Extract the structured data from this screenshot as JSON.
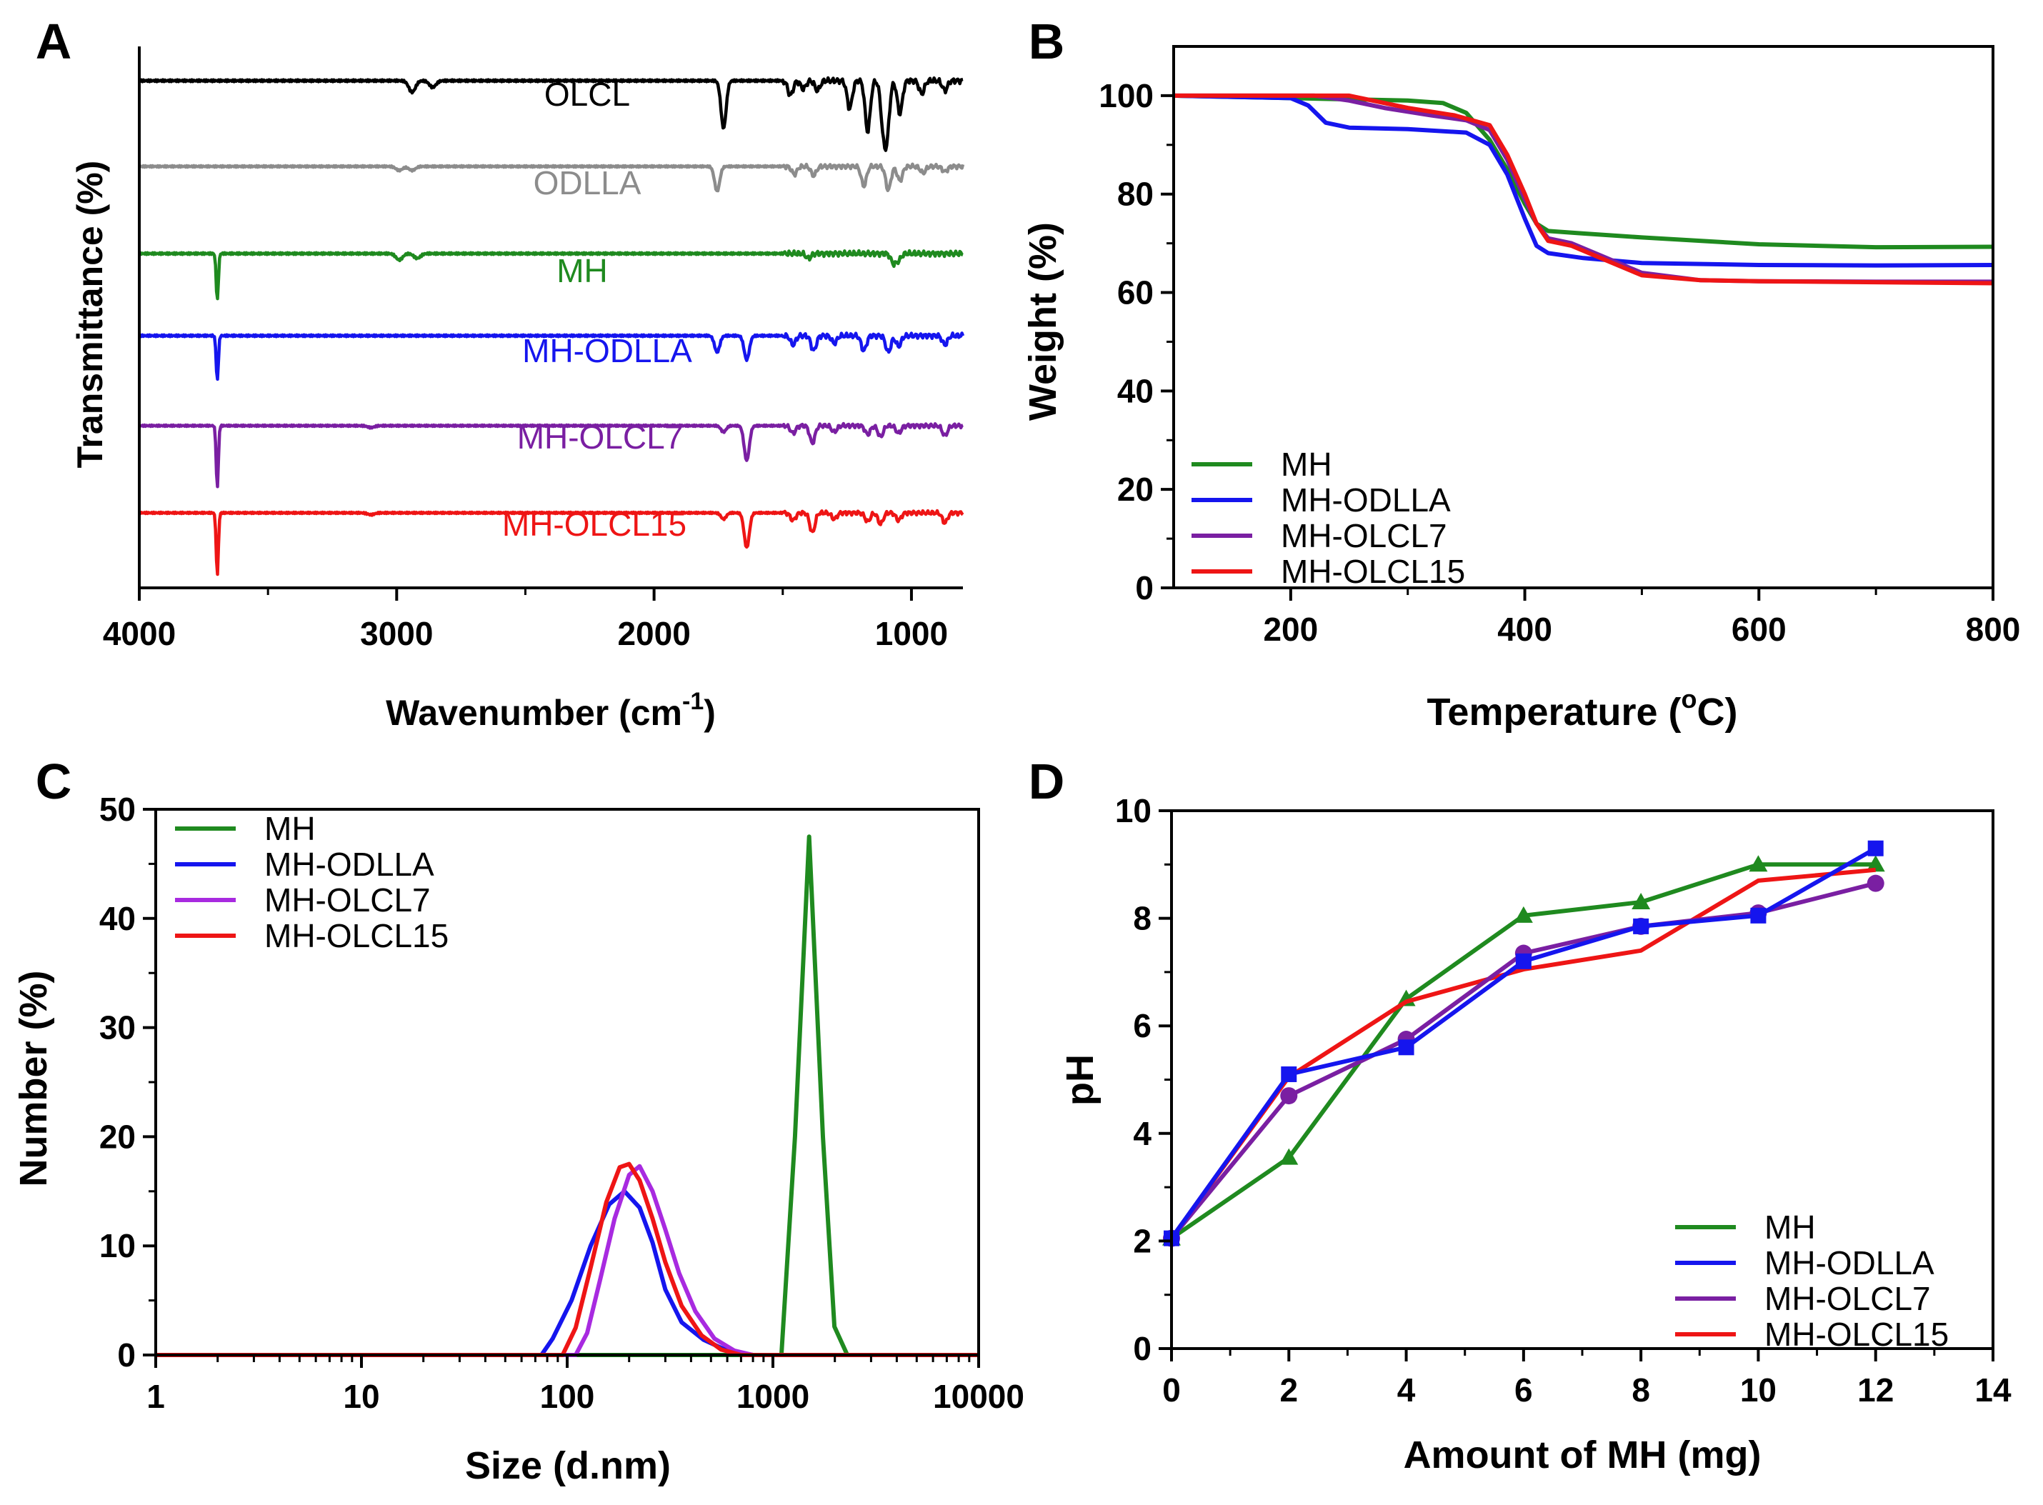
{
  "colors": {
    "black": "#000000",
    "gray": "#8c8c8c",
    "green": "#1f8a1f",
    "blue": "#1515ee",
    "purple": "#7a1fa2",
    "violet": "#a82ae0",
    "red": "#ee1515"
  },
  "chart_data": [
    {
      "panel": "A",
      "type": "line",
      "title": "",
      "xlabel_main": "Wavenumber (cm",
      "xlabel_sup": "-1",
      "xlabel_end": ")",
      "ylabel": "Transmittance (%)",
      "xlim": [
        4000,
        800
      ],
      "xticks": [
        4000,
        3000,
        2000,
        1000
      ],
      "xtick_labels": [
        "4000",
        "3000",
        "2000",
        "1000"
      ],
      "series": [
        {
          "name": "OLCL",
          "color": "#000000",
          "offset": 0,
          "peaks": [
            [
              2940,
              14
            ],
            [
              2860,
              8
            ],
            [
              1730,
              58
            ],
            [
              1470,
              18
            ],
            [
              1420,
              10
            ],
            [
              1365,
              12
            ],
            [
              1240,
              34
            ],
            [
              1170,
              62
            ],
            [
              1110,
              50
            ],
            [
              1095,
              60
            ],
            [
              1045,
              40
            ],
            [
              960,
              16
            ],
            [
              870,
              12
            ]
          ]
        },
        {
          "name": "ODLLA",
          "color": "#8c8c8c",
          "offset": 1,
          "peaks": [
            [
              2990,
              6
            ],
            [
              2940,
              6
            ],
            [
              1755,
              38
            ],
            [
              1455,
              12
            ],
            [
              1380,
              14
            ],
            [
              1185,
              30
            ],
            [
              1090,
              36
            ],
            [
              1045,
              22
            ],
            [
              955,
              10
            ],
            [
              870,
              8
            ]
          ]
        },
        {
          "name": "MH",
          "color": "#1f8a1f",
          "offset": 2,
          "peaks": [
            [
              3697,
              60
            ],
            [
              2990,
              8
            ],
            [
              2920,
              6
            ],
            [
              1400,
              6
            ],
            [
              1070,
              12
            ],
            [
              1050,
              8
            ]
          ]
        },
        {
          "name": "MH-ODLLA",
          "color": "#1515ee",
          "offset": 3,
          "peaks": [
            [
              3697,
              60
            ],
            [
              1755,
              22
            ],
            [
              1640,
              32
            ],
            [
              1460,
              12
            ],
            [
              1380,
              20
            ],
            [
              1300,
              10
            ],
            [
              1185,
              20
            ],
            [
              1090,
              22
            ],
            [
              1050,
              14
            ],
            [
              870,
              12
            ]
          ]
        },
        {
          "name": "MH-OLCL7",
          "color": "#7a1fa2",
          "offset": 4,
          "peaks": [
            [
              3697,
              100
            ],
            [
              3100,
              3
            ],
            [
              1730,
              10
            ],
            [
              1640,
              56
            ],
            [
              1460,
              12
            ],
            [
              1385,
              28
            ],
            [
              1300,
              10
            ],
            [
              1170,
              14
            ],
            [
              1120,
              18
            ],
            [
              1050,
              12
            ],
            [
              870,
              16
            ]
          ]
        },
        {
          "name": "MH-OLCL15",
          "color": "#ee1515",
          "offset": 5,
          "peaks": [
            [
              3697,
              100
            ],
            [
              3100,
              3
            ],
            [
              1730,
              10
            ],
            [
              1640,
              56
            ],
            [
              1460,
              12
            ],
            [
              1385,
              32
            ],
            [
              1300,
              10
            ],
            [
              1170,
              14
            ],
            [
              1120,
              18
            ],
            [
              1050,
              12
            ],
            [
              870,
              16
            ]
          ]
        }
      ]
    },
    {
      "panel": "B",
      "type": "line",
      "title": "",
      "xlabel_main": "Temperature (",
      "xlabel_sup": "o",
      "xlabel_end": "C)",
      "ylabel": "Weight (%)",
      "xlim": [
        100,
        800
      ],
      "ylim": [
        0,
        110
      ],
      "xticks": [
        200,
        400,
        600,
        800
      ],
      "xtick_labels": [
        "200",
        "400",
        "600",
        "800"
      ],
      "yticks": [
        0,
        20,
        40,
        60,
        80,
        100
      ],
      "ytick_labels": [
        "0",
        "20",
        "40",
        "60",
        "80",
        "100"
      ],
      "legend_position": "bottom-left",
      "series": [
        {
          "name": "MH",
          "color": "#1f8a1f",
          "points": [
            [
              100,
              100
            ],
            [
              200,
              99.5
            ],
            [
              300,
              99
            ],
            [
              330,
              98.5
            ],
            [
              350,
              96.5
            ],
            [
              370,
              91
            ],
            [
              385,
              85
            ],
            [
              400,
              78
            ],
            [
              410,
              74
            ],
            [
              420,
              72.5
            ],
            [
              450,
              72
            ],
            [
              500,
              71.2
            ],
            [
              600,
              69.8
            ],
            [
              700,
              69.2
            ],
            [
              800,
              69.3
            ]
          ]
        },
        {
          "name": "MH-ODLLA",
          "color": "#1515ee",
          "points": [
            [
              100,
              100
            ],
            [
              200,
              99.5
            ],
            [
              215,
              98
            ],
            [
              230,
              94.5
            ],
            [
              250,
              93.5
            ],
            [
              300,
              93.2
            ],
            [
              350,
              92.5
            ],
            [
              370,
              90
            ],
            [
              385,
              84
            ],
            [
              400,
              75
            ],
            [
              410,
              69.5
            ],
            [
              420,
              68
            ],
            [
              450,
              67
            ],
            [
              500,
              66
            ],
            [
              600,
              65.6
            ],
            [
              700,
              65.5
            ],
            [
              800,
              65.6
            ]
          ]
        },
        {
          "name": "MH-OLCL7",
          "color": "#7a1fa2",
          "points": [
            [
              100,
              100
            ],
            [
              220,
              100
            ],
            [
              250,
              99
            ],
            [
              280,
              97.5
            ],
            [
              320,
              96
            ],
            [
              350,
              95
            ],
            [
              370,
              93
            ],
            [
              385,
              87
            ],
            [
              400,
              79
            ],
            [
              410,
              74
            ],
            [
              420,
              71
            ],
            [
              440,
              70
            ],
            [
              470,
              67
            ],
            [
              500,
              64
            ],
            [
              550,
              62.5
            ],
            [
              600,
              62.3
            ],
            [
              700,
              62.2
            ],
            [
              800,
              62.2
            ]
          ]
        },
        {
          "name": "MH-OLCL15",
          "color": "#ee1515",
          "points": [
            [
              100,
              100
            ],
            [
              250,
              100
            ],
            [
              270,
              99
            ],
            [
              300,
              97.5
            ],
            [
              340,
              96
            ],
            [
              370,
              94
            ],
            [
              385,
              88
            ],
            [
              400,
              80
            ],
            [
              410,
              74
            ],
            [
              420,
              70.5
            ],
            [
              440,
              69.5
            ],
            [
              470,
              66.5
            ],
            [
              500,
              63.5
            ],
            [
              550,
              62.5
            ],
            [
              600,
              62.3
            ],
            [
              700,
              62.1
            ],
            [
              800,
              61.9
            ]
          ]
        }
      ]
    },
    {
      "panel": "C",
      "type": "line",
      "title": "",
      "xlabel": "Size (d.nm)",
      "ylabel": "Number (%)",
      "xscale": "log",
      "xlim": [
        1,
        10000
      ],
      "ylim": [
        0,
        50
      ],
      "xticks": [
        1,
        10,
        100,
        1000,
        10000
      ],
      "xtick_labels": [
        "1",
        "10",
        "100",
        "1000",
        "10000"
      ],
      "yticks": [
        0,
        10,
        20,
        30,
        40,
        50
      ],
      "ytick_labels": [
        "0",
        "10",
        "20",
        "30",
        "40",
        "50"
      ],
      "legend_position": "top-left",
      "series": [
        {
          "name": "MH",
          "color": "#1f8a1f",
          "points": [
            [
              1,
              0
            ],
            [
              1100,
              0
            ],
            [
              1280,
              20
            ],
            [
              1500,
              47.5
            ],
            [
              1750,
              20
            ],
            [
              1990,
              2.6
            ],
            [
              2300,
              0
            ],
            [
              10000,
              0
            ]
          ]
        },
        {
          "name": "MH-ODLLA",
          "color": "#1515ee",
          "points": [
            [
              1,
              0
            ],
            [
              75,
              0
            ],
            [
              85,
              1.5
            ],
            [
              105,
              5
            ],
            [
              130,
              10
            ],
            [
              160,
              13.8
            ],
            [
              190,
              15
            ],
            [
              225,
              13.5
            ],
            [
              260,
              10.3
            ],
            [
              300,
              6
            ],
            [
              360,
              3
            ],
            [
              460,
              1.4
            ],
            [
              600,
              0.4
            ],
            [
              800,
              0
            ],
            [
              10000,
              0
            ]
          ]
        },
        {
          "name": "MH-OLCL7",
          "color": "#a82ae0",
          "points": [
            [
              1,
              0
            ],
            [
              110,
              0
            ],
            [
              125,
              2
            ],
            [
              145,
              7
            ],
            [
              170,
              12.5
            ],
            [
              200,
              16.5
            ],
            [
              225,
              17.3
            ],
            [
              260,
              15
            ],
            [
              300,
              11.5
            ],
            [
              350,
              7.5
            ],
            [
              420,
              4
            ],
            [
              520,
              1.5
            ],
            [
              650,
              0.4
            ],
            [
              800,
              0
            ],
            [
              10000,
              0
            ]
          ]
        },
        {
          "name": "MH-OLCL15",
          "color": "#ee1515",
          "points": [
            [
              1,
              0
            ],
            [
              95,
              0
            ],
            [
              110,
              2.5
            ],
            [
              130,
              8
            ],
            [
              155,
              14
            ],
            [
              180,
              17.2
            ],
            [
              200,
              17.5
            ],
            [
              225,
              16
            ],
            [
              260,
              12.5
            ],
            [
              300,
              8.5
            ],
            [
              360,
              4.5
            ],
            [
              450,
              1.8
            ],
            [
              560,
              0.5
            ],
            [
              700,
              0
            ],
            [
              10000,
              0
            ]
          ]
        }
      ]
    },
    {
      "panel": "D",
      "type": "line",
      "title": "",
      "xlabel": "Amount of MH (mg)",
      "ylabel": "pH",
      "xlim": [
        0,
        14
      ],
      "ylim": [
        0,
        10
      ],
      "xticks": [
        0,
        2,
        4,
        6,
        8,
        10,
        12,
        14
      ],
      "xtick_labels": [
        "0",
        "2",
        "4",
        "6",
        "8",
        "10",
        "12",
        "14"
      ],
      "yticks": [
        0,
        2,
        4,
        6,
        8,
        10
      ],
      "ytick_labels": [
        "0",
        "2",
        "4",
        "6",
        "8",
        "10"
      ],
      "legend_position": "bottom-right",
      "series": [
        {
          "name": "MH",
          "color": "#1f8a1f",
          "marker": "triangle",
          "points": [
            [
              0,
              2.05
            ],
            [
              2,
              3.55
            ],
            [
              4,
              6.5
            ],
            [
              6,
              8.05
            ],
            [
              8,
              8.3
            ],
            [
              10,
              9.0
            ],
            [
              12,
              9.0
            ]
          ]
        },
        {
          "name": "MH-ODLLA",
          "color": "#1515ee",
          "marker": "square",
          "points": [
            [
              0,
              2.05
            ],
            [
              2,
              5.1
            ],
            [
              4,
              5.6
            ],
            [
              6,
              7.2
            ],
            [
              8,
              7.85
            ],
            [
              10,
              8.05
            ],
            [
              12,
              9.3
            ]
          ]
        },
        {
          "name": "MH-OLCL7",
          "color": "#7a1fa2",
          "marker": "circle",
          "points": [
            [
              0,
              2.05
            ],
            [
              2,
              4.7
            ],
            [
              4,
              5.75
            ],
            [
              6,
              7.35
            ],
            [
              8,
              7.85
            ],
            [
              10,
              8.1
            ],
            [
              12,
              8.65
            ]
          ]
        },
        {
          "name": "MH-OLCL15",
          "color": "#ee1515",
          "marker": "none",
          "points": [
            [
              0,
              2.05
            ],
            [
              2,
              5.05
            ],
            [
              4,
              6.45
            ],
            [
              6,
              7.05
            ],
            [
              8,
              7.4
            ],
            [
              10,
              8.7
            ],
            [
              12,
              8.9
            ]
          ]
        }
      ]
    }
  ]
}
